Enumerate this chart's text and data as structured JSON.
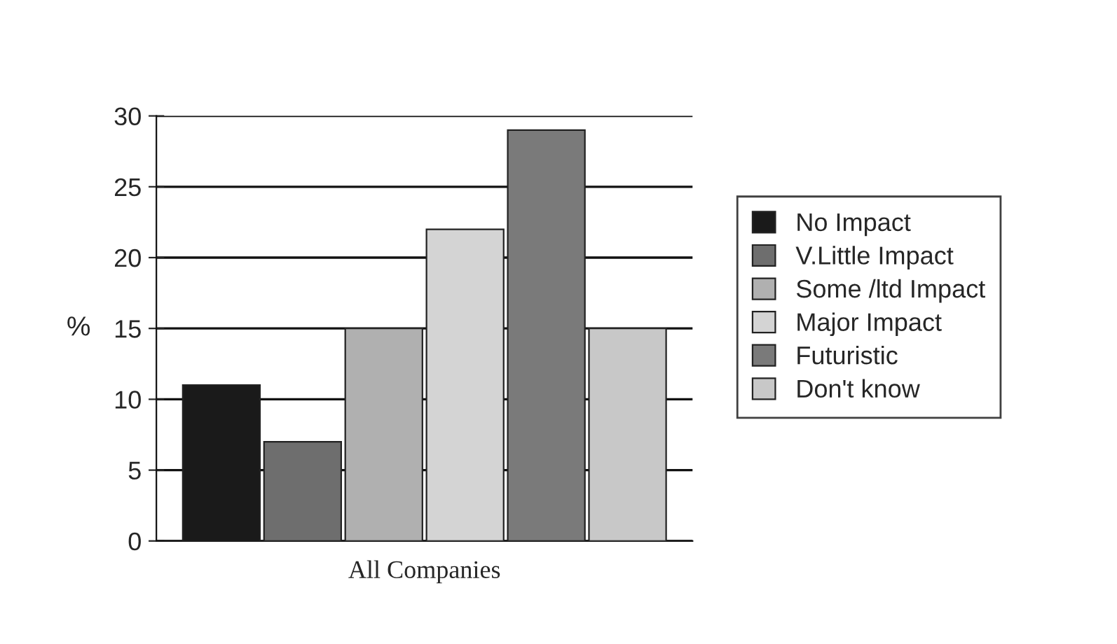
{
  "chart_data": {
    "type": "bar",
    "categories": [
      "All Companies"
    ],
    "ylabel": "%",
    "series": [
      {
        "name": "No Impact",
        "color": "#1a1a1a",
        "values": [
          11
        ]
      },
      {
        "name": "V.Little Impact",
        "color": "#6e6e6e",
        "values": [
          7
        ]
      },
      {
        "name": "Some /ltd Impact",
        "color": "#b0b0b0",
        "values": [
          15
        ]
      },
      {
        "name": "Major Impact",
        "color": "#d4d4d4",
        "values": [
          22
        ]
      },
      {
        "name": "Futuristic",
        "color": "#7a7a7a",
        "values": [
          29
        ]
      },
      {
        "name": "Don't know",
        "color": "#c8c8c8",
        "values": [
          15
        ]
      }
    ],
    "ylim": [
      0,
      30
    ],
    "yticks": [
      0,
      5,
      10,
      15,
      20,
      25,
      30
    ],
    "grid": "y",
    "legend": "right"
  }
}
